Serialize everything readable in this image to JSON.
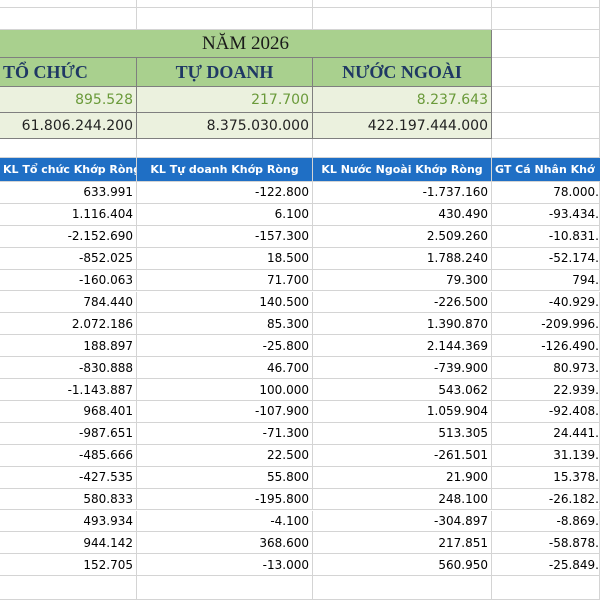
{
  "header": {
    "year_title": "NĂM 2026",
    "groups": [
      "TỔ CHỨC",
      "TỰ DOANH",
      "NƯỚC NGOÀI"
    ],
    "volume_totals": [
      "895.528",
      "217.700",
      "8.237.643"
    ],
    "value_totals": [
      "61.806.244.200",
      "8.375.030.000",
      "422.197.444.000"
    ]
  },
  "table": {
    "columns": [
      "KL Tổ chức Khớp Ròng",
      "KL Tự doanh Khớp Ròng",
      "KL Nước Ngoài Khớp Ròng",
      "GT Cá Nhân Khớ"
    ],
    "rows": [
      [
        "633.991",
        "-122.800",
        "-1.737.160",
        "78.000."
      ],
      [
        "1.116.404",
        "6.100",
        "430.490",
        "-93.434."
      ],
      [
        "-2.152.690",
        "-157.300",
        "2.509.260",
        "-10.831."
      ],
      [
        "-852.025",
        "18.500",
        "1.788.240",
        "-52.174."
      ],
      [
        "-160.063",
        "71.700",
        "79.300",
        "794."
      ],
      [
        "784.440",
        "140.500",
        "-226.500",
        "-40.929."
      ],
      [
        "2.072.186",
        "85.300",
        "1.390.870",
        "-209.996."
      ],
      [
        "188.897",
        "-25.800",
        "2.144.369",
        "-126.490."
      ],
      [
        "-830.888",
        "46.700",
        "-739.900",
        "80.973."
      ],
      [
        "-1.143.887",
        "100.000",
        "543.062",
        "22.939."
      ],
      [
        "968.401",
        "-107.900",
        "1.059.904",
        "-92.408."
      ],
      [
        "-987.651",
        "-71.300",
        "513.305",
        "24.441."
      ],
      [
        "-485.666",
        "22.500",
        "-261.501",
        "31.139."
      ],
      [
        "-427.535",
        "55.800",
        "21.900",
        "15.378."
      ],
      [
        "580.833",
        "-195.800",
        "248.100",
        "-26.182."
      ],
      [
        "493.934",
        "-4.100",
        "-304.897",
        "-8.869."
      ],
      [
        "944.142",
        "368.600",
        "217.851",
        "-58.878."
      ],
      [
        "152.705",
        "-13.000",
        "560.950",
        "-25.849."
      ]
    ]
  }
}
